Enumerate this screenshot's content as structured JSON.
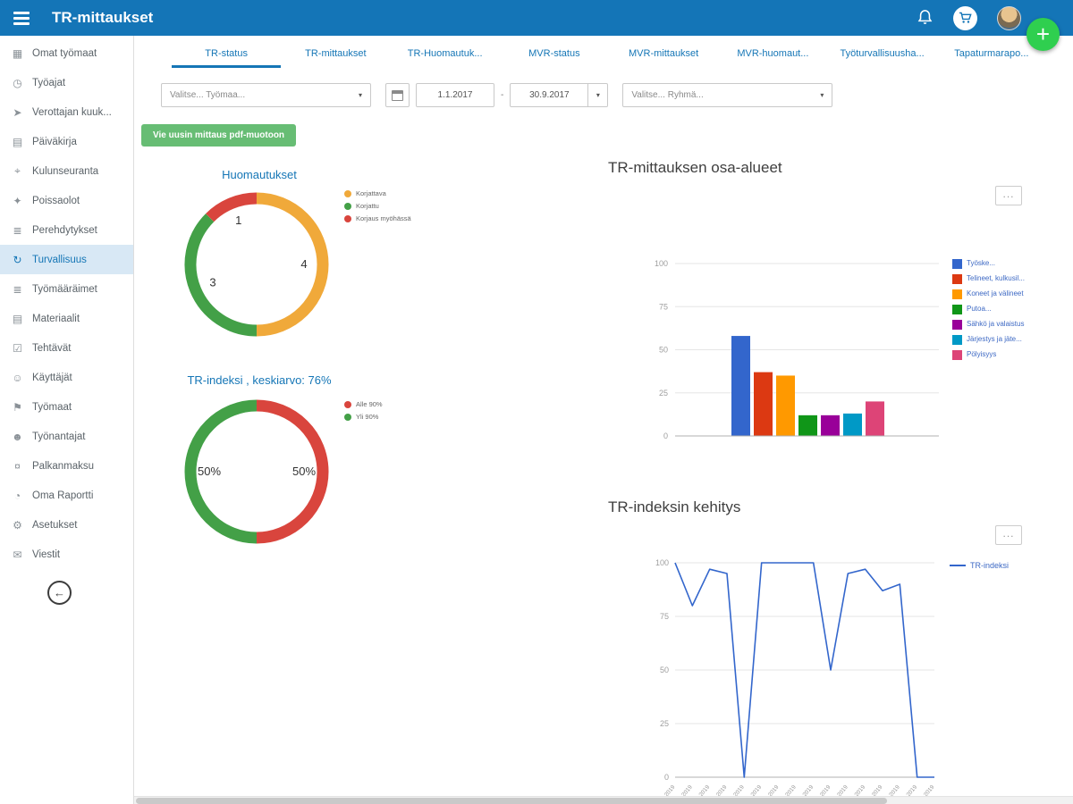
{
  "topbar": {
    "title": "TR-mittaukset"
  },
  "ui": {
    "more": "...",
    "add": "+",
    "back": "←",
    "chevron": "▾"
  },
  "colors": {
    "brand_blue": "#1475b7",
    "accent_green": "#2fcf4f",
    "button_green": "#67bd74",
    "link_blue": "#1576b6"
  },
  "sidebar": {
    "selected": "Turvallisuus",
    "items": [
      {
        "label": "Omat työmaat",
        "icon": "worksites-icon",
        "glyph": "▦"
      },
      {
        "label": "Työajat",
        "icon": "clock-icon",
        "glyph": "◷"
      },
      {
        "label": "Verottajan kuuk...",
        "icon": "tax-report-icon",
        "glyph": "➤"
      },
      {
        "label": "Päiväkirja",
        "icon": "diary-icon",
        "glyph": "▤"
      },
      {
        "label": "Kulunseuranta",
        "icon": "location-icon",
        "glyph": "⌖"
      },
      {
        "label": "Poissaolot",
        "icon": "absence-icon",
        "glyph": "✦"
      },
      {
        "label": "Perehdytykset",
        "icon": "orientation-icon",
        "glyph": "≣"
      },
      {
        "label": "Turvallisuus",
        "icon": "safety-icon",
        "glyph": "↻"
      },
      {
        "label": "Työmääräimet",
        "icon": "work-orders-icon",
        "glyph": "≣"
      },
      {
        "label": "Materiaalit",
        "icon": "materials-icon",
        "glyph": "▤"
      },
      {
        "label": "Tehtävät",
        "icon": "tasks-icon",
        "glyph": "☑"
      },
      {
        "label": "Käyttäjät",
        "icon": "users-icon",
        "glyph": "☺"
      },
      {
        "label": "Työmaat",
        "icon": "sites-icon",
        "glyph": "⚑"
      },
      {
        "label": "Työnantajat",
        "icon": "employers-icon",
        "glyph": "☻"
      },
      {
        "label": "Palkanmaksu",
        "icon": "payroll-icon",
        "glyph": "¤"
      },
      {
        "label": "Oma Raportti",
        "icon": "report-icon",
        "glyph": "◔"
      },
      {
        "label": "Asetukset",
        "icon": "settings-icon",
        "glyph": "⚙"
      },
      {
        "label": "Viestit",
        "icon": "messages-icon",
        "glyph": "✉"
      }
    ]
  },
  "tabs": [
    {
      "label": "TR-status",
      "active": true
    },
    {
      "label": "TR-mittaukset"
    },
    {
      "label": "TR-Huomautuk..."
    },
    {
      "label": "MVR-status"
    },
    {
      "label": "MVR-mittaukset"
    },
    {
      "label": "MVR-huomaut..."
    },
    {
      "label": "Työturvallisuusha..."
    },
    {
      "label": "Tapaturmarapo..."
    }
  ],
  "filters": {
    "worksite": "Valitse... Työmaa...",
    "date_from": "1.1.2017",
    "date_separator": "-",
    "date_to": "30.9.2017",
    "group": "Valitse... Ryhmä..."
  },
  "actions": {
    "export_pdf": "Vie uusin mittaus pdf-muotoon"
  },
  "chart_data": [
    {
      "id": "huomautukset",
      "type": "pie",
      "donut": true,
      "title": "Huomautukset",
      "legend_position": "right",
      "slices": [
        {
          "label": "Korjattava",
          "value": 4,
          "color": "#f0a93a"
        },
        {
          "label": "Korjattu",
          "value": 3,
          "color": "#43a047"
        },
        {
          "label": "Korjaus myöhässä",
          "value": 1,
          "color": "#d9453d"
        }
      ]
    },
    {
      "id": "tr-indeksi-jakauma",
      "type": "pie",
      "donut": true,
      "title": "TR-indeksi , keskiarvo: 76%",
      "legend_position": "right",
      "slices": [
        {
          "label": "Alle 90%",
          "value": 50,
          "display": "50%",
          "color": "#d9453d"
        },
        {
          "label": "Yli 90%",
          "value": 50,
          "display": "50%",
          "color": "#43a047"
        }
      ]
    },
    {
      "id": "osa-alueet",
      "type": "bar",
      "title": "TR-mittauksen osa-alueet",
      "ylim": [
        0,
        100
      ],
      "yticks": [
        0,
        25,
        50,
        75,
        100
      ],
      "grid": true,
      "legend_position": "right",
      "series": [
        {
          "label": "Työske...",
          "value": 58,
          "color": "#3366cc"
        },
        {
          "label": "Telineet, kulkusil...",
          "value": 37,
          "color": "#dc3912"
        },
        {
          "label": "Koneet ja välineet",
          "value": 35,
          "color": "#ff9900"
        },
        {
          "label": "Putoa...",
          "value": 12,
          "color": "#109618"
        },
        {
          "label": "Sähkö ja valaistus",
          "value": 12,
          "color": "#990099"
        },
        {
          "label": "Järjestys ja jäte...",
          "value": 13,
          "color": "#0099c6"
        },
        {
          "label": "Pölyisyys",
          "value": 20,
          "color": "#dd4477"
        }
      ]
    },
    {
      "id": "kehitys",
      "type": "line",
      "title": "TR-indeksin kehitys",
      "legend": "TR-indeksi",
      "legend_position": "right",
      "color": "#3366cc",
      "ylim": [
        0,
        100
      ],
      "yticks": [
        0,
        25,
        50,
        75,
        100
      ],
      "grid": true,
      "x": [
        "4.1.2019",
        "11.1.2019",
        "18.1.2019",
        "25.1.2019",
        "1.2.2019",
        "8.2.2019",
        "15.2.2019",
        "22.2.2019",
        "1.3.2019",
        "8.3.2019",
        "15.3.2019",
        "22.3.2019",
        "29.3.2019",
        "5.4.2019",
        "12.4.2019",
        "19.4.2019"
      ],
      "values": [
        100,
        80,
        97,
        95,
        0,
        100,
        100,
        100,
        100,
        50,
        95,
        97,
        87,
        90,
        0,
        0
      ]
    }
  ]
}
